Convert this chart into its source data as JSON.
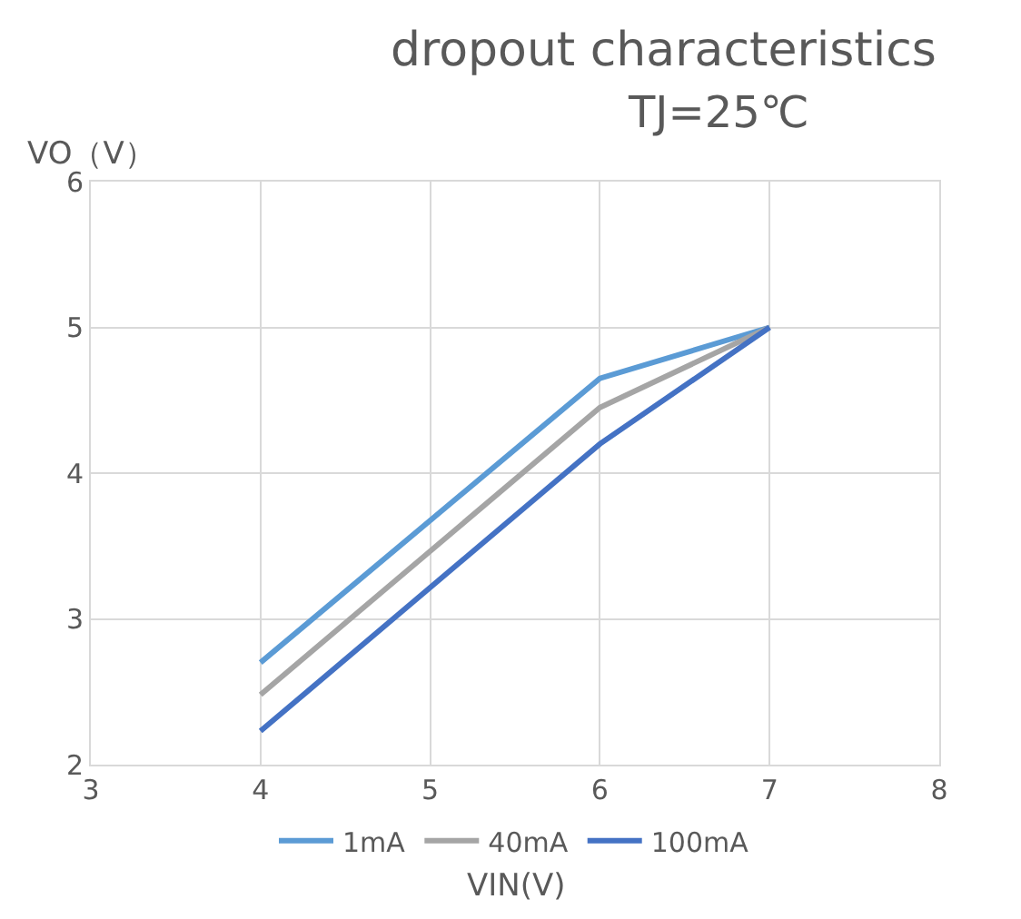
{
  "chart_data": {
    "type": "line",
    "title": "dropout characteristics",
    "subtitle": "TJ=25℃",
    "xlabel": "VIN(V)",
    "ylabel": "VO（V）",
    "x": [
      4,
      6,
      7
    ],
    "series": [
      {
        "name": "1mA",
        "color": "#5b9bd5",
        "values": [
          2.7,
          4.65,
          5
        ]
      },
      {
        "name": "40mA",
        "color": "#a5a5a5",
        "values": [
          2.48,
          4.45,
          5
        ]
      },
      {
        "name": "100mA",
        "color": "#4472c4",
        "values": [
          2.23,
          4.2,
          5
        ]
      }
    ],
    "xlim": [
      3,
      8
    ],
    "xticks": [
      3,
      4,
      5,
      6,
      7,
      8
    ],
    "ylim": [
      2,
      6
    ],
    "yticks": [
      2,
      3,
      4,
      5,
      6
    ],
    "grid": true,
    "legend": "bottom",
    "marker": "none",
    "line_style": "solid"
  }
}
